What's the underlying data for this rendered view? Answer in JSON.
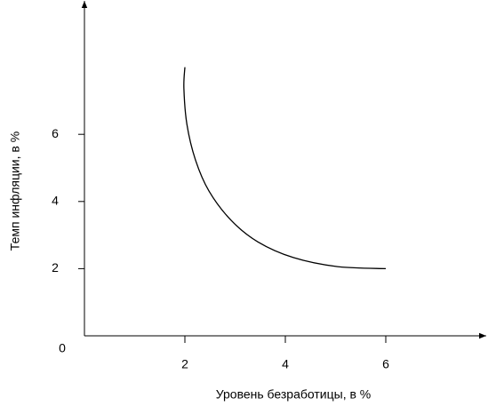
{
  "chart_data": {
    "type": "line",
    "x_label": "Уровень безработицы, в %",
    "y_label": "Темп инфляции, в %",
    "origin": 0,
    "series": [
      {
        "color": "#000000",
        "x": [
          2,
          1.98,
          2.04,
          2.21,
          2.48,
          2.92,
          3.45,
          4.16,
          5.04,
          6
        ],
        "values": [
          8,
          7.37,
          6.3,
          5.24,
          4.31,
          3.44,
          2.8,
          2.33,
          2.06,
          2
        ]
      }
    ],
    "xlim": [
      0,
      8
    ],
    "ylim": [
      0,
      10
    ],
    "xticks": [
      2,
      4,
      6
    ],
    "yticks": [
      2,
      4,
      6
    ],
    "grid": false
  }
}
